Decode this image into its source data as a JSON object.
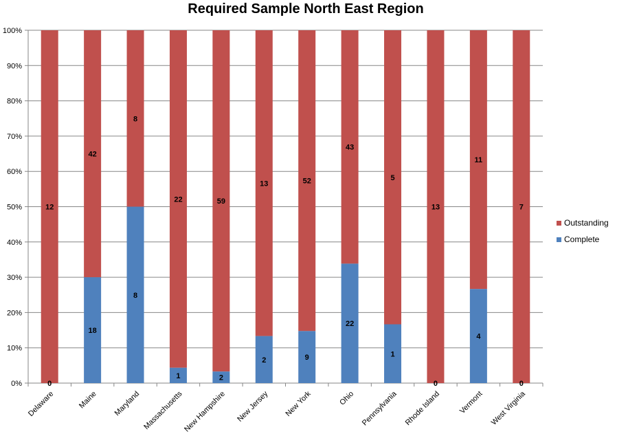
{
  "chart_data": {
    "type": "bar",
    "stacked": "percent",
    "title": "Required Sample North East Region",
    "categories": [
      "Delaware",
      "Maine",
      "Maryland",
      "Massachusetts",
      "New Hampshire",
      "New Jersey",
      "New York",
      "Ohio",
      "Pennsylvania",
      "Rhode Island",
      "Vermont",
      "West Virginia"
    ],
    "series": [
      {
        "name": "Complete",
        "color": "#4f81bd",
        "values": [
          0,
          18,
          8,
          1,
          2,
          2,
          9,
          22,
          1,
          0,
          4,
          0
        ]
      },
      {
        "name": "Outstanding",
        "color": "#c0504d",
        "values": [
          12,
          42,
          8,
          22,
          59,
          13,
          52,
          43,
          5,
          13,
          11,
          7
        ]
      }
    ],
    "y_ticks": [
      "0%",
      "10%",
      "20%",
      "30%",
      "40%",
      "50%",
      "60%",
      "70%",
      "80%",
      "90%",
      "100%"
    ],
    "ylim": [
      0,
      100
    ],
    "xlabel": "",
    "ylabel": "",
    "grid": true,
    "legend_position": "right",
    "legend_order": [
      "Outstanding",
      "Complete"
    ]
  }
}
